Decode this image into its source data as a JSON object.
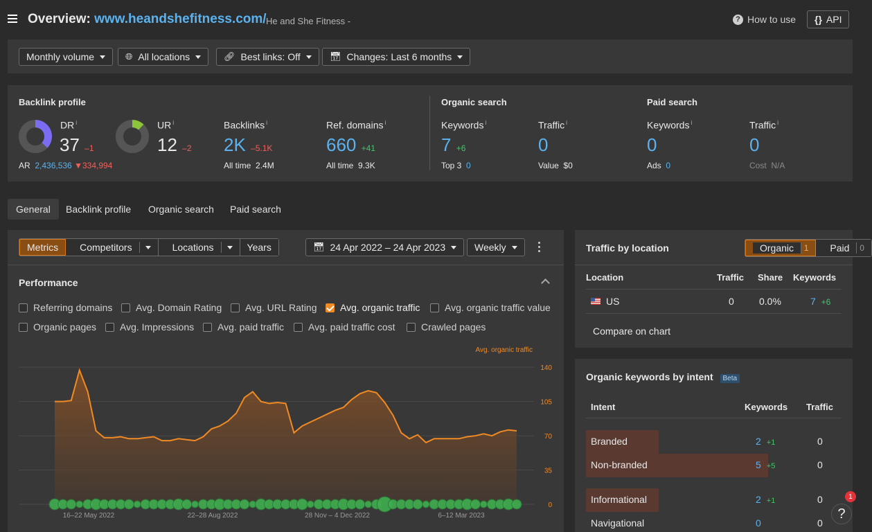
{
  "header": {
    "title_prefix": "Overview:",
    "site": "www.heandshefitness.com/",
    "site_name": "He and She Fitness -",
    "how_to_use": "How to use",
    "api": "API"
  },
  "filters": {
    "volume": "Monthly volume",
    "locations": "All locations",
    "best_links": "Best links: Off",
    "changes": "Changes: Last 6 months"
  },
  "backlink_profile": {
    "title": "Backlink profile",
    "dr_label": "DR",
    "dr_value": "37",
    "dr_change": "–1",
    "ur_label": "UR",
    "ur_value": "12",
    "ur_change": "–2",
    "ar_label": "AR",
    "ar_value": "2,436,536",
    "ar_change": "334,994",
    "backlinks_label": "Backlinks",
    "backlinks_value": "2K",
    "backlinks_change": "–5.1K",
    "backlinks_alltime_label": "All time",
    "backlinks_alltime": "2.4M",
    "refdomains_label": "Ref. domains",
    "refdomains_value": "660",
    "refdomains_change": "+41",
    "refdomains_alltime_label": "All time",
    "refdomains_alltime": "9.3K",
    "dr_fraction": 0.37,
    "ur_fraction": 0.12
  },
  "organic_search": {
    "title": "Organic search",
    "keywords_label": "Keywords",
    "keywords_value": "7",
    "keywords_change": "+6",
    "top3_label": "Top 3",
    "top3_value": "0",
    "traffic_label": "Traffic",
    "traffic_value": "0",
    "value_label": "Value",
    "value_value": "$0"
  },
  "paid_search": {
    "title": "Paid search",
    "keywords_label": "Keywords",
    "keywords_value": "0",
    "ads_label": "Ads",
    "ads_value": "0",
    "traffic_label": "Traffic",
    "traffic_value": "0",
    "cost_label": "Cost",
    "cost_value": "N/A"
  },
  "tabs": [
    "General",
    "Backlink profile",
    "Organic search",
    "Paid search"
  ],
  "chart_toolbar": {
    "metrics": "Metrics",
    "competitors": "Competitors",
    "locations": "Locations",
    "years": "Years",
    "date_range": "24 Apr 2022 – 24 Apr 2023",
    "interval": "Weekly"
  },
  "performance": {
    "title": "Performance",
    "checkboxes": [
      {
        "label": "Referring domains",
        "checked": false
      },
      {
        "label": "Avg. Domain Rating",
        "checked": false
      },
      {
        "label": "Avg. URL Rating",
        "checked": false
      },
      {
        "label": "Avg. organic traffic",
        "checked": true
      },
      {
        "label": "Avg. organic traffic value",
        "checked": false
      },
      {
        "label": "Organic pages",
        "checked": false
      },
      {
        "label": "Avg. Impressions",
        "checked": false
      },
      {
        "label": "Avg. paid traffic",
        "checked": false
      },
      {
        "label": "Avg. paid traffic cost",
        "checked": false
      },
      {
        "label": "Crawled pages",
        "checked": false
      }
    ]
  },
  "chart_data": {
    "type": "area",
    "series": [
      {
        "name": "Avg. organic traffic",
        "color": "#f08a24",
        "values": [
          105,
          105,
          106,
          137,
          115,
          75,
          68,
          68,
          69,
          67,
          67,
          68,
          69,
          65,
          65,
          67,
          66,
          65,
          69,
          77,
          80,
          85,
          93,
          109,
          115,
          105,
          103,
          104,
          103,
          73,
          80,
          84,
          88,
          92,
          96,
          99,
          107,
          113,
          116,
          114,
          104,
          91,
          73,
          67,
          71,
          63,
          67,
          67,
          67,
          67,
          69,
          70,
          72,
          70,
          74,
          76,
          75
        ]
      }
    ],
    "x_tick_labels": [
      "16–22 May 2022",
      "22–28 Aug 2022",
      "28 Nov – 4 Dec 2022",
      "6–12 Mar 2023"
    ],
    "y_ticks": [
      0,
      35,
      70,
      105,
      140
    ],
    "ylim": [
      0,
      150
    ],
    "grid": true
  },
  "traffic_by_location": {
    "title": "Traffic by location",
    "organic_label": "Organic",
    "organic_count": "1",
    "paid_label": "Paid",
    "paid_count": "0",
    "headers": {
      "location": "Location",
      "traffic": "Traffic",
      "share": "Share",
      "keywords": "Keywords"
    },
    "row": {
      "country": "US",
      "traffic": "0",
      "share": "0.0%",
      "keywords": "7",
      "keywords_change": "+6"
    },
    "compare": "Compare on chart"
  },
  "intent": {
    "title": "Organic keywords by intent",
    "beta": "Beta",
    "headers": {
      "intent": "Intent",
      "keywords": "Keywords",
      "traffic": "Traffic"
    },
    "rows": [
      {
        "label": "Branded",
        "keywords": "2",
        "change": "+1",
        "traffic": "0",
        "share": 0.4
      },
      {
        "label": "Non-branded",
        "keywords": "5",
        "change": "+5",
        "traffic": "0",
        "share": 1.0
      },
      {
        "label": "Informational",
        "keywords": "2",
        "change": "+1",
        "traffic": "0",
        "share": 0.4
      },
      {
        "label": "Navigational",
        "keywords": "0",
        "change": "",
        "traffic": "0",
        "share": 0
      }
    ]
  },
  "help": {
    "badge": "1",
    "icon": "?"
  }
}
